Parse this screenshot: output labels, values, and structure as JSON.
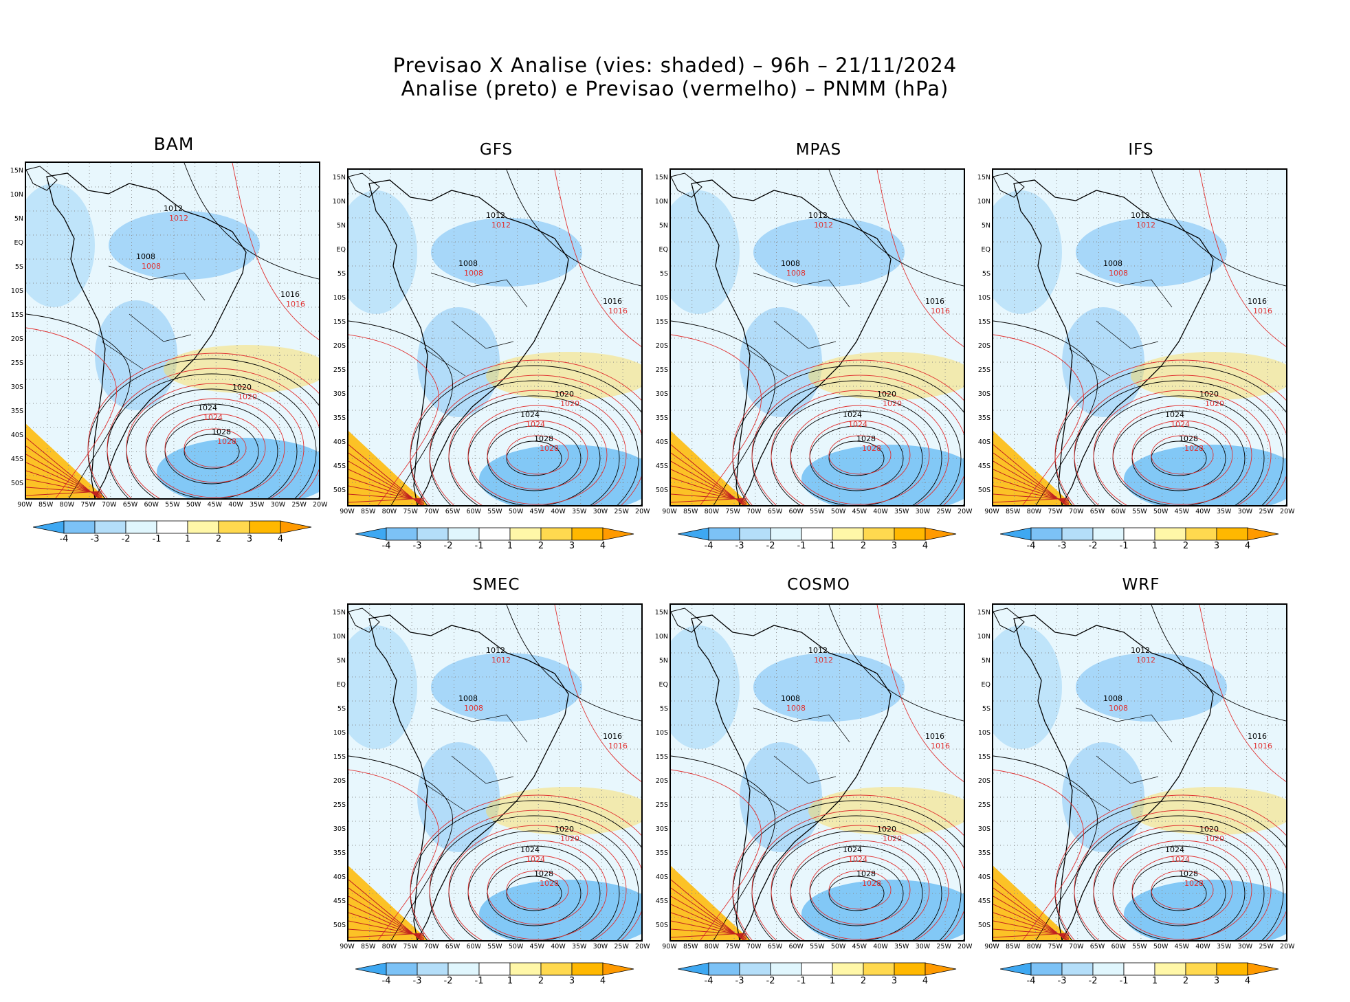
{
  "header": {
    "line1": "Previsao X Analise (vies: shaded) – 96h – 21/11/2024",
    "line2": "Analise (preto) e Previsao (vermelho) – PNMM (hPa)"
  },
  "lat_labels": [
    "15N",
    "10N",
    "5N",
    "EQ",
    "5S",
    "10S",
    "15S",
    "20S",
    "25S",
    "30S",
    "35S",
    "40S",
    "45S",
    "50S"
  ],
  "lon_labels": [
    "90W",
    "85W",
    "80W",
    "75W",
    "70W",
    "65W",
    "60W",
    "55W",
    "50W",
    "45W",
    "40W",
    "35W",
    "30W",
    "25W",
    "20W"
  ],
  "colorbar": {
    "labels": [
      "-4",
      "-3",
      "-2",
      "-1",
      "1",
      "2",
      "3",
      "4"
    ],
    "colors": [
      "#3ea8f2",
      "#7cc2f6",
      "#b4def9",
      "#e0f6fd",
      "#ffffff",
      "#fff7a8",
      "#ffd94f",
      "#ffb800",
      "#ff9a00"
    ]
  },
  "panels": [
    {
      "id": "bam",
      "title": "BAM",
      "labels": {
        "a": "1016",
        "b": "1012",
        "c": "1008",
        "d": "1024",
        "e": "1028",
        "f": "1020"
      }
    },
    {
      "id": "gfs",
      "title": "GFS",
      "labels": {
        "a": "1016",
        "b": "1012",
        "c": "1008",
        "d": "1024",
        "e": "1028",
        "f": "1020"
      }
    },
    {
      "id": "mpas",
      "title": "MPAS",
      "labels": {
        "a": "1016",
        "b": "1012",
        "c": "1008",
        "d": "1024",
        "e": "1028",
        "f": "1020"
      }
    },
    {
      "id": "ifs",
      "title": "IFS",
      "labels": {
        "a": "1016",
        "b": "1012",
        "c": "1008",
        "d": "1024",
        "e": "1028",
        "f": "1020"
      }
    },
    {
      "id": "smec",
      "title": "SMEC",
      "labels": {
        "a": "1016",
        "b": "1012",
        "c": "1008",
        "d": "1024",
        "e": "1028",
        "f": "1020"
      }
    },
    {
      "id": "cosmo",
      "title": "COSMO",
      "labels": {
        "a": "1016",
        "b": "1012",
        "c": "1008",
        "d": "1024",
        "e": "1028",
        "f": "1020"
      }
    },
    {
      "id": "wrf",
      "title": "WRF",
      "labels": {
        "a": "1016",
        "b": "1012",
        "c": "1008",
        "d": "1024",
        "e": "1028",
        "f": "1020"
      }
    }
  ]
}
